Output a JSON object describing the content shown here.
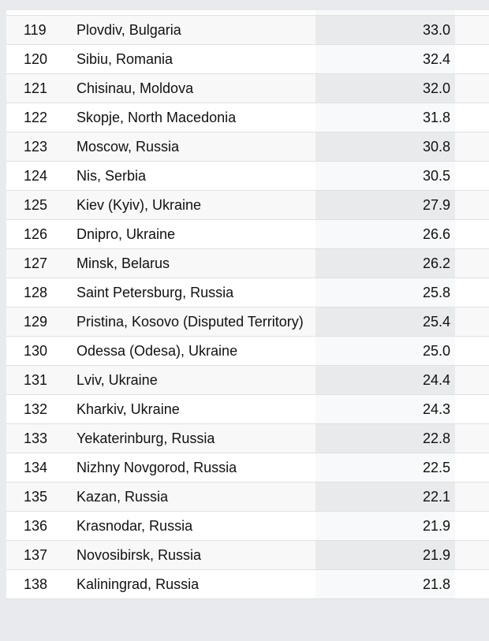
{
  "colors": {
    "page_bg": "#e8eaed",
    "row_odd_bg": "#f8f8f8",
    "row_odd_highlight": "#e9eaeb",
    "row_even_bg": "#ffffff",
    "row_even_highlight": "#f8f9fa",
    "border": "#e0e0e0",
    "text": "#111111"
  },
  "table": {
    "columns": [
      "rank",
      "city",
      "value"
    ],
    "rows": [
      {
        "rank": "119",
        "city": "Plovdiv, Bulgaria",
        "value": "33.0"
      },
      {
        "rank": "120",
        "city": "Sibiu, Romania",
        "value": "32.4"
      },
      {
        "rank": "121",
        "city": "Chisinau, Moldova",
        "value": "32.0"
      },
      {
        "rank": "122",
        "city": "Skopje, North Macedonia",
        "value": "31.8"
      },
      {
        "rank": "123",
        "city": "Moscow, Russia",
        "value": "30.8"
      },
      {
        "rank": "124",
        "city": "Nis, Serbia",
        "value": "30.5"
      },
      {
        "rank": "125",
        "city": "Kiev (Kyiv), Ukraine",
        "value": "27.9"
      },
      {
        "rank": "126",
        "city": "Dnipro, Ukraine",
        "value": "26.6"
      },
      {
        "rank": "127",
        "city": "Minsk, Belarus",
        "value": "26.2"
      },
      {
        "rank": "128",
        "city": "Saint Petersburg, Russia",
        "value": "25.8"
      },
      {
        "rank": "129",
        "city": "Pristina, Kosovo (Disputed Territory)",
        "value": "25.4"
      },
      {
        "rank": "130",
        "city": "Odessa (Odesa), Ukraine",
        "value": "25.0"
      },
      {
        "rank": "131",
        "city": "Lviv, Ukraine",
        "value": "24.4"
      },
      {
        "rank": "132",
        "city": "Kharkiv, Ukraine",
        "value": "24.3"
      },
      {
        "rank": "133",
        "city": "Yekaterinburg, Russia",
        "value": "22.8"
      },
      {
        "rank": "134",
        "city": "Nizhny Novgorod, Russia",
        "value": "22.5"
      },
      {
        "rank": "135",
        "city": "Kazan, Russia",
        "value": "22.1"
      },
      {
        "rank": "136",
        "city": "Krasnodar, Russia",
        "value": "21.9"
      },
      {
        "rank": "137",
        "city": "Novosibirsk, Russia",
        "value": "21.9"
      },
      {
        "rank": "138",
        "city": "Kaliningrad, Russia",
        "value": "21.8"
      }
    ]
  }
}
